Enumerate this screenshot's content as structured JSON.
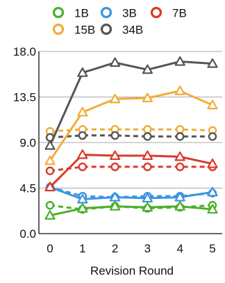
{
  "chart_data": {
    "type": "line",
    "title": "",
    "xlabel": "Revision Round",
    "ylabel": "",
    "x": [
      0,
      1,
      2,
      3,
      4,
      5
    ],
    "xticks": [
      "0",
      "1",
      "2",
      "3",
      "4",
      "5"
    ],
    "yticks": [
      "0.0",
      "4.5",
      "9.0",
      "13.5",
      "18.0"
    ],
    "ylim": [
      0,
      18
    ],
    "grid": "horizontal",
    "legend": "top",
    "series": [
      {
        "name": "1B",
        "color": "#4caf2a",
        "solid": [
          1.8,
          2.5,
          2.7,
          2.6,
          2.7,
          2.4
        ],
        "dashed": [
          2.8,
          2.4,
          2.7,
          2.5,
          2.6,
          2.8
        ]
      },
      {
        "name": "3B",
        "color": "#3d94e0",
        "solid": [
          4.6,
          3.4,
          3.6,
          3.5,
          3.6,
          4.1
        ],
        "dashed": [
          4.6,
          3.7,
          3.6,
          3.7,
          3.7,
          4.0
        ]
      },
      {
        "name": "7B",
        "color": "#d93a2b",
        "solid": [
          4.6,
          7.8,
          7.7,
          7.7,
          7.6,
          6.9
        ],
        "dashed": [
          6.2,
          6.6,
          6.6,
          6.6,
          6.6,
          6.6
        ]
      },
      {
        "name": "15B",
        "color": "#f2ac3a",
        "solid": [
          7.2,
          12.0,
          13.3,
          13.4,
          14.1,
          12.7
        ],
        "dashed": [
          10.1,
          10.3,
          10.3,
          10.3,
          10.3,
          10.2
        ]
      },
      {
        "name": "34B",
        "color": "#555555",
        "solid": [
          8.7,
          15.9,
          16.9,
          16.2,
          17.0,
          16.8
        ],
        "dashed": [
          9.5,
          9.7,
          9.7,
          9.6,
          9.6,
          9.6
        ]
      }
    ]
  }
}
